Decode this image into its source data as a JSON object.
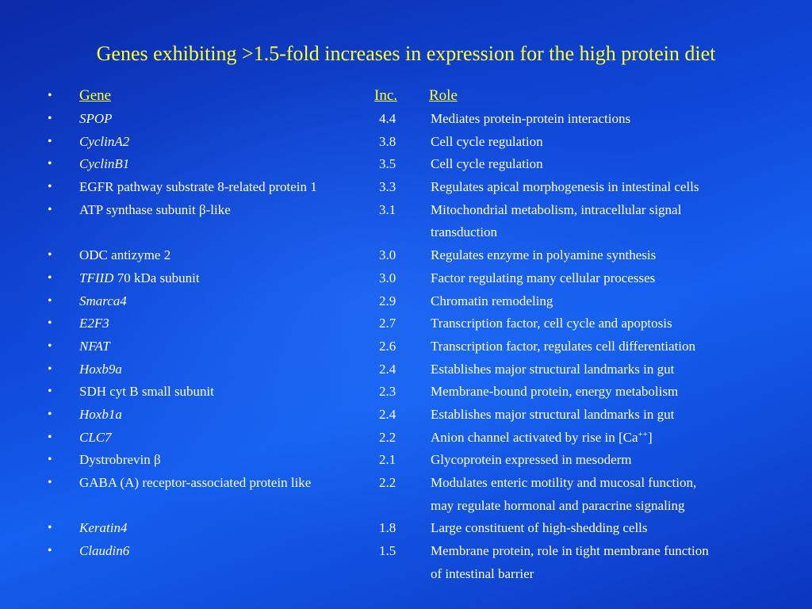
{
  "slide": {
    "title": "Genes exhibiting >1.5-fold increases in expression for the high protein diet",
    "bullet_glyph": "•",
    "header": {
      "gene": "Gene ",
      "inc": "Inc. ",
      "role": "Role"
    },
    "rows": [
      {
        "gene": "SPOP",
        "italic": true,
        "inc": "4.4",
        "role": "Mediates protein-protein interactions",
        "role_cont": ""
      },
      {
        "gene": "CyclinA2",
        "italic": true,
        "inc": "3.8",
        "role": "Cell cycle regulation",
        "role_cont": ""
      },
      {
        "gene": "CyclinB1",
        "italic": true,
        "inc": "3.5",
        "role": "Cell cycle regulation",
        "role_cont": ""
      },
      {
        "gene": "EGFR pathway substrate 8-related protein 1",
        "italic": false,
        "inc": "3.3",
        "role": "Regulates apical morphogenesis in intestinal cells",
        "role_cont": ""
      },
      {
        "gene": "ATP synthase subunit β-like",
        "italic": false,
        "inc": "3.1",
        "role": "Mitochondrial metabolism, intracellular signal",
        "role_cont": "transduction"
      },
      {
        "gene": "ODC antizyme 2",
        "italic": false,
        "inc": "3.0",
        "role": "Regulates enzyme in polyamine synthesis",
        "role_cont": ""
      },
      {
        "gene": "TFIID",
        "gene_suffix": " 70 kDa subunit",
        "italic": true,
        "inc": "3.0",
        "role": "Factor regulating many cellular processes",
        "role_cont": ""
      },
      {
        "gene": "Smarca4",
        "italic": true,
        "inc": "2.9",
        "role": "Chromatin remodeling",
        "role_cont": ""
      },
      {
        "gene": "E2F3",
        "italic": true,
        "inc": "2.7",
        "role": "Transcription factor, cell cycle and apoptosis",
        "role_cont": ""
      },
      {
        "gene": "NFAT",
        "italic": true,
        "inc": "2.6",
        "role": "Transcription factor, regulates cell differentiation",
        "role_cont": ""
      },
      {
        "gene": "Hoxb9a",
        "italic": true,
        "inc": "2.4",
        "role": "Establishes major structural landmarks in gut",
        "role_cont": ""
      },
      {
        "gene": "SDH cyt B small subunit",
        "italic": false,
        "inc": "2.3",
        "role": "Membrane-bound protein, energy metabolism",
        "role_cont": ""
      },
      {
        "gene": "Hoxb1a",
        "italic": true,
        "inc": "2.4",
        "role": "Establishes major structural landmarks in gut",
        "role_cont": ""
      },
      {
        "gene": "CLC7",
        "italic": true,
        "inc": "2.2",
        "role": "Anion channel activated by rise in [Ca",
        "role_sup": "++",
        "role_after_sup": "]",
        "role_cont": ""
      },
      {
        "gene": "Dystrobrevin β",
        "italic": false,
        "inc": "2.1",
        "role": "Glycoprotein expressed in mesoderm",
        "role_cont": ""
      },
      {
        "gene": "GABA (A) receptor-associated protein like",
        "italic": false,
        "inc": "2.2",
        "role": "Modulates enteric motility and mucosal function,",
        "role_cont": "may regulate hormonal and paracrine signaling"
      },
      {
        "gene": "Keratin4",
        "italic": true,
        "inc": "1.8",
        "role": "Large constituent of high-shedding cells",
        "role_cont": ""
      },
      {
        "gene": "Claudin6",
        "italic": true,
        "inc": "1.5",
        "role": "Membrane protein, role in tight membrane function",
        "role_cont": "of intestinal barrier"
      }
    ]
  }
}
